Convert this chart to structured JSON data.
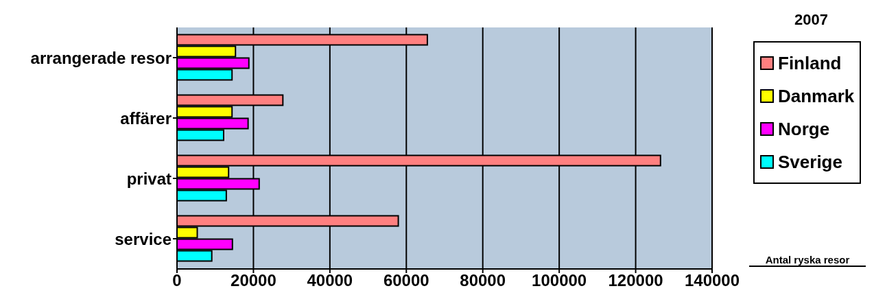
{
  "chart_data": {
    "type": "bar",
    "orientation": "horizontal",
    "title": "2007",
    "categories": [
      "arrangerade resor",
      "affärer",
      "privat",
      "service"
    ],
    "series": [
      {
        "name": "Finland",
        "color": "#ff8080",
        "values": [
          65500,
          27700,
          126500,
          57900
        ]
      },
      {
        "name": "Danmark",
        "color": "#ffff00",
        "values": [
          15300,
          14400,
          13500,
          5300
        ]
      },
      {
        "name": "Norge",
        "color": "#ff00ff",
        "values": [
          18800,
          18600,
          21500,
          14500
        ]
      },
      {
        "name": "Sverige",
        "color": "#00ffff",
        "values": [
          14400,
          12200,
          12900,
          9100
        ]
      }
    ],
    "xlim": [
      0,
      140000
    ],
    "xticks": [
      0,
      20000,
      40000,
      60000,
      80000,
      100000,
      120000,
      140000
    ],
    "grid": "x",
    "legend": "right",
    "annotations": [
      "Antal ryska resor"
    ]
  }
}
